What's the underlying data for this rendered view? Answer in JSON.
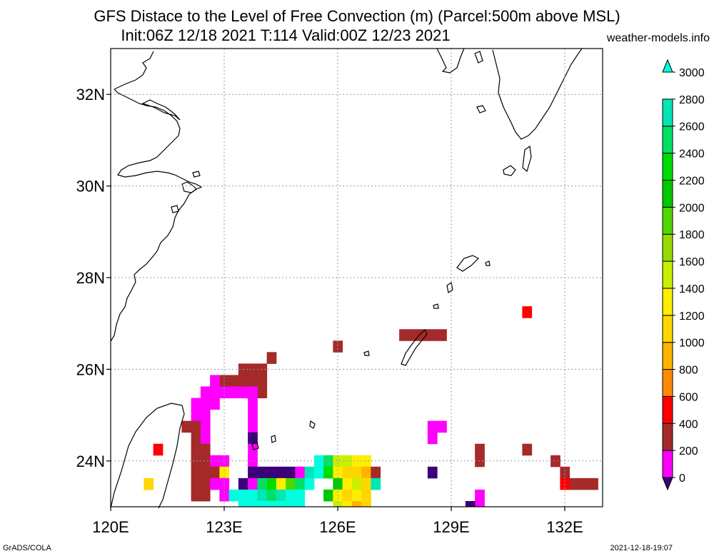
{
  "header": {
    "title_line1": "GFS Distace to the Level of Free Convection (m) (Parcel:500m above MSL)",
    "title_line2": "Init:06Z 12/18 2021 T:114 Valid:00Z 12/23 2021",
    "site": "weather-models.info"
  },
  "footer": {
    "left": "GrADS/COLA",
    "right": "2021-12-18-19:07"
  },
  "colors": {
    "land_outline": "#000000",
    "grid": "#9a9a9a",
    "scale": [
      {
        "from": 0,
        "to": 200,
        "color": "#3c0078"
      },
      {
        "from": 200,
        "to": 400,
        "color": "#ff00ff"
      },
      {
        "from": 400,
        "to": 600,
        "color": "#a52a2a"
      },
      {
        "from": 600,
        "to": 800,
        "color": "#ff0000"
      },
      {
        "from": 800,
        "to": 1000,
        "color": "#ff8c00"
      },
      {
        "from": 1000,
        "to": 1200,
        "color": "#ffb400"
      },
      {
        "from": 1200,
        "to": 1400,
        "color": "#ffd700"
      },
      {
        "from": 1400,
        "to": 1600,
        "color": "#ffee00"
      },
      {
        "from": 1600,
        "to": 1800,
        "color": "#c8f000"
      },
      {
        "from": 1800,
        "to": 2000,
        "color": "#96dc00"
      },
      {
        "from": 2000,
        "to": 2200,
        "color": "#50d700"
      },
      {
        "from": 2200,
        "to": 2400,
        "color": "#00c800"
      },
      {
        "from": 2400,
        "to": 2600,
        "color": "#00dc00"
      },
      {
        "from": 2600,
        "to": 2800,
        "color": "#00e164"
      },
      {
        "from": 2800,
        "to": 3000,
        "color": "#00e6b4"
      },
      {
        "from": 3000,
        "to": 3200,
        "color": "#00ffe0"
      }
    ]
  },
  "chart_data": {
    "type": "heatmap",
    "title": "GFS Distace to the Level of Free Convection (m) (Parcel:500m above MSL)",
    "subtitle": "Init:06Z 12/18 2021 T:114 Valid:00Z 12/23 2021",
    "xlim": [
      120,
      133
    ],
    "ylim": [
      23,
      33
    ],
    "x_ticks": [
      120,
      123,
      126,
      129,
      132
    ],
    "x_tick_labels": [
      "120E",
      "123E",
      "126E",
      "129E",
      "132E"
    ],
    "y_ticks": [
      24,
      26,
      28,
      30,
      32
    ],
    "y_tick_labels": [
      "24N",
      "26N",
      "28N",
      "30N",
      "32N"
    ],
    "grid": true,
    "colorbar": {
      "position": "right",
      "labels": [
        "0",
        "200",
        "400",
        "600",
        "800",
        "1000",
        "1200",
        "1400",
        "1600",
        "1800",
        "2000",
        "2200",
        "2400",
        "2600",
        "2800",
        "3000"
      ]
    },
    "cells": [
      {
        "lon": 123.0,
        "lat": 25.75,
        "v": 500
      },
      {
        "lon": 123.25,
        "lat": 25.75,
        "v": 500
      },
      {
        "lon": 123.5,
        "lat": 25.75,
        "v": 500
      },
      {
        "lon": 123.75,
        "lat": 25.75,
        "v": 500
      },
      {
        "lon": 123.5,
        "lat": 26.0,
        "v": 500
      },
      {
        "lon": 123.75,
        "lat": 26.0,
        "v": 500
      },
      {
        "lon": 124.0,
        "lat": 26.0,
        "v": 500
      },
      {
        "lon": 124.0,
        "lat": 25.75,
        "v": 500
      },
      {
        "lon": 124.0,
        "lat": 25.5,
        "v": 500
      },
      {
        "lon": 124.25,
        "lat": 26.25,
        "v": 500
      },
      {
        "lon": 126.0,
        "lat": 26.5,
        "v": 500
      },
      {
        "lon": 127.75,
        "lat": 26.75,
        "v": 500
      },
      {
        "lon": 128.0,
        "lat": 26.75,
        "v": 500
      },
      {
        "lon": 128.25,
        "lat": 26.75,
        "v": 500
      },
      {
        "lon": 128.5,
        "lat": 26.75,
        "v": 500
      },
      {
        "lon": 128.75,
        "lat": 26.75,
        "v": 500
      },
      {
        "lon": 122.75,
        "lat": 25.75,
        "v": 300
      },
      {
        "lon": 122.5,
        "lat": 25.5,
        "v": 300
      },
      {
        "lon": 122.75,
        "lat": 25.5,
        "v": 300
      },
      {
        "lon": 123.0,
        "lat": 25.5,
        "v": 300
      },
      {
        "lon": 123.25,
        "lat": 25.5,
        "v": 300
      },
      {
        "lon": 123.5,
        "lat": 25.5,
        "v": 300
      },
      {
        "lon": 123.75,
        "lat": 25.5,
        "v": 300
      },
      {
        "lon": 122.25,
        "lat": 25.25,
        "v": 300
      },
      {
        "lon": 122.5,
        "lat": 25.25,
        "v": 300
      },
      {
        "lon": 122.75,
        "lat": 25.25,
        "v": 300
      },
      {
        "lon": 123.75,
        "lat": 25.25,
        "v": 300
      },
      {
        "lon": 122.25,
        "lat": 25.0,
        "v": 300
      },
      {
        "lon": 122.5,
        "lat": 25.0,
        "v": 300
      },
      {
        "lon": 123.75,
        "lat": 25.0,
        "v": 300
      },
      {
        "lon": 122.0,
        "lat": 24.75,
        "v": 500
      },
      {
        "lon": 122.25,
        "lat": 24.75,
        "v": 500
      },
      {
        "lon": 122.5,
        "lat": 24.75,
        "v": 300
      },
      {
        "lon": 123.75,
        "lat": 24.75,
        "v": 300
      },
      {
        "lon": 122.25,
        "lat": 24.5,
        "v": 500
      },
      {
        "lon": 122.5,
        "lat": 24.5,
        "v": 300
      },
      {
        "lon": 123.75,
        "lat": 24.5,
        "v": 100
      },
      {
        "lon": 122.25,
        "lat": 24.25,
        "v": 500
      },
      {
        "lon": 122.5,
        "lat": 24.25,
        "v": 500
      },
      {
        "lon": 123.75,
        "lat": 24.25,
        "v": 300
      },
      {
        "lon": 122.25,
        "lat": 24.0,
        "v": 500
      },
      {
        "lon": 122.5,
        "lat": 24.0,
        "v": 500
      },
      {
        "lon": 122.75,
        "lat": 24.0,
        "v": 300
      },
      {
        "lon": 123.0,
        "lat": 24.0,
        "v": 300
      },
      {
        "lon": 123.75,
        "lat": 24.0,
        "v": 300
      },
      {
        "lon": 122.25,
        "lat": 23.75,
        "v": 500
      },
      {
        "lon": 122.5,
        "lat": 23.75,
        "v": 500
      },
      {
        "lon": 122.75,
        "lat": 23.75,
        "v": 500
      },
      {
        "lon": 123.0,
        "lat": 23.75,
        "v": 1500
      },
      {
        "lon": 123.75,
        "lat": 23.75,
        "v": 100
      },
      {
        "lon": 124.0,
        "lat": 23.75,
        "v": 100
      },
      {
        "lon": 124.25,
        "lat": 23.75,
        "v": 100
      },
      {
        "lon": 124.5,
        "lat": 23.75,
        "v": 100
      },
      {
        "lon": 124.75,
        "lat": 23.75,
        "v": 100
      },
      {
        "lon": 125.0,
        "lat": 23.75,
        "v": 300
      },
      {
        "lon": 125.25,
        "lat": 23.75,
        "v": 2900
      },
      {
        "lon": 122.25,
        "lat": 23.5,
        "v": 500
      },
      {
        "lon": 122.5,
        "lat": 23.5,
        "v": 500
      },
      {
        "lon": 122.75,
        "lat": 23.5,
        "v": 300
      },
      {
        "lon": 123.0,
        "lat": 23.5,
        "v": 300
      },
      {
        "lon": 123.5,
        "lat": 23.5,
        "v": 100
      },
      {
        "lon": 123.75,
        "lat": 23.5,
        "v": 300
      },
      {
        "lon": 124.0,
        "lat": 23.5,
        "v": 2700
      },
      {
        "lon": 124.25,
        "lat": 23.5,
        "v": 2400
      },
      {
        "lon": 124.5,
        "lat": 23.5,
        "v": 1500
      },
      {
        "lon": 124.75,
        "lat": 23.5,
        "v": 2000
      },
      {
        "lon": 125.0,
        "lat": 23.5,
        "v": 2600
      },
      {
        "lon": 125.25,
        "lat": 23.5,
        "v": 3000
      },
      {
        "lon": 122.25,
        "lat": 23.25,
        "v": 500
      },
      {
        "lon": 122.5,
        "lat": 23.25,
        "v": 500
      },
      {
        "lon": 123.0,
        "lat": 23.25,
        "v": 300
      },
      {
        "lon": 123.25,
        "lat": 23.25,
        "v": 3000
      },
      {
        "lon": 123.5,
        "lat": 23.25,
        "v": 3000
      },
      {
        "lon": 123.75,
        "lat": 23.25,
        "v": 3000
      },
      {
        "lon": 124.0,
        "lat": 23.25,
        "v": 2900
      },
      {
        "lon": 124.25,
        "lat": 23.25,
        "v": 2700
      },
      {
        "lon": 124.5,
        "lat": 23.25,
        "v": 2800
      },
      {
        "lon": 124.75,
        "lat": 23.25,
        "v": 3000
      },
      {
        "lon": 125.0,
        "lat": 23.25,
        "v": 3000
      },
      {
        "lon": 123.5,
        "lat": 23.0,
        "v": 3000
      },
      {
        "lon": 123.75,
        "lat": 23.0,
        "v": 3000
      },
      {
        "lon": 124.0,
        "lat": 23.0,
        "v": 3000
      },
      {
        "lon": 124.25,
        "lat": 23.0,
        "v": 3000
      },
      {
        "lon": 124.5,
        "lat": 23.0,
        "v": 3000
      },
      {
        "lon": 124.75,
        "lat": 23.0,
        "v": 3000
      },
      {
        "lon": 125.0,
        "lat": 23.0,
        "v": 3000
      },
      {
        "lon": 125.5,
        "lat": 24.0,
        "v": 3000
      },
      {
        "lon": 125.75,
        "lat": 24.0,
        "v": 2700
      },
      {
        "lon": 126.0,
        "lat": 24.0,
        "v": 1700
      },
      {
        "lon": 126.25,
        "lat": 24.0,
        "v": 1600
      },
      {
        "lon": 126.5,
        "lat": 24.0,
        "v": 1500
      },
      {
        "lon": 126.75,
        "lat": 24.0,
        "v": 1500
      },
      {
        "lon": 125.5,
        "lat": 23.75,
        "v": 3000
      },
      {
        "lon": 125.75,
        "lat": 23.75,
        "v": 2500
      },
      {
        "lon": 126.0,
        "lat": 23.75,
        "v": 1500
      },
      {
        "lon": 126.25,
        "lat": 23.75,
        "v": 1300
      },
      {
        "lon": 126.5,
        "lat": 23.75,
        "v": 1300
      },
      {
        "lon": 126.75,
        "lat": 23.75,
        "v": 1100
      },
      {
        "lon": 127.0,
        "lat": 23.75,
        "v": 500
      },
      {
        "lon": 126.0,
        "lat": 23.5,
        "v": 2200
      },
      {
        "lon": 126.25,
        "lat": 23.5,
        "v": 1400
      },
      {
        "lon": 126.5,
        "lat": 23.5,
        "v": 1700
      },
      {
        "lon": 126.75,
        "lat": 23.5,
        "v": 1300
      },
      {
        "lon": 127.0,
        "lat": 23.5,
        "v": 2900
      },
      {
        "lon": 125.75,
        "lat": 23.25,
        "v": 2200
      },
      {
        "lon": 126.0,
        "lat": 23.25,
        "v": 1500
      },
      {
        "lon": 126.25,
        "lat": 23.25,
        "v": 1200
      },
      {
        "lon": 126.5,
        "lat": 23.25,
        "v": 1500
      },
      {
        "lon": 126.75,
        "lat": 23.25,
        "v": 1300
      },
      {
        "lon": 126.0,
        "lat": 23.0,
        "v": 1700
      },
      {
        "lon": 126.25,
        "lat": 23.0,
        "v": 1500
      },
      {
        "lon": 126.5,
        "lat": 23.0,
        "v": 1100
      },
      {
        "lon": 126.75,
        "lat": 23.0,
        "v": 1300
      },
      {
        "lon": 121.25,
        "lat": 24.25,
        "v": 700
      },
      {
        "lon": 121.0,
        "lat": 23.5,
        "v": 1200
      },
      {
        "lon": 128.5,
        "lat": 24.75,
        "v": 300
      },
      {
        "lon": 128.75,
        "lat": 24.75,
        "v": 300
      },
      {
        "lon": 128.5,
        "lat": 24.5,
        "v": 300
      },
      {
        "lon": 128.5,
        "lat": 23.75,
        "v": 100
      },
      {
        "lon": 129.75,
        "lat": 24.25,
        "v": 500
      },
      {
        "lon": 129.75,
        "lat": 24.0,
        "v": 500
      },
      {
        "lon": 131.0,
        "lat": 27.25,
        "v": 700
      },
      {
        "lon": 131.0,
        "lat": 24.25,
        "v": 500
      },
      {
        "lon": 131.75,
        "lat": 24.0,
        "v": 500
      },
      {
        "lon": 132.0,
        "lat": 23.75,
        "v": 500
      },
      {
        "lon": 132.0,
        "lat": 23.5,
        "v": 700
      },
      {
        "lon": 132.25,
        "lat": 23.5,
        "v": 500
      },
      {
        "lon": 132.5,
        "lat": 23.5,
        "v": 500
      },
      {
        "lon": 132.75,
        "lat": 23.5,
        "v": 500
      },
      {
        "lon": 129.75,
        "lat": 23.0,
        "v": 300
      },
      {
        "lon": 129.75,
        "lat": 23.25,
        "v": 300
      },
      {
        "lon": 129.5,
        "lat": 23.0,
        "v": 100
      }
    ]
  }
}
